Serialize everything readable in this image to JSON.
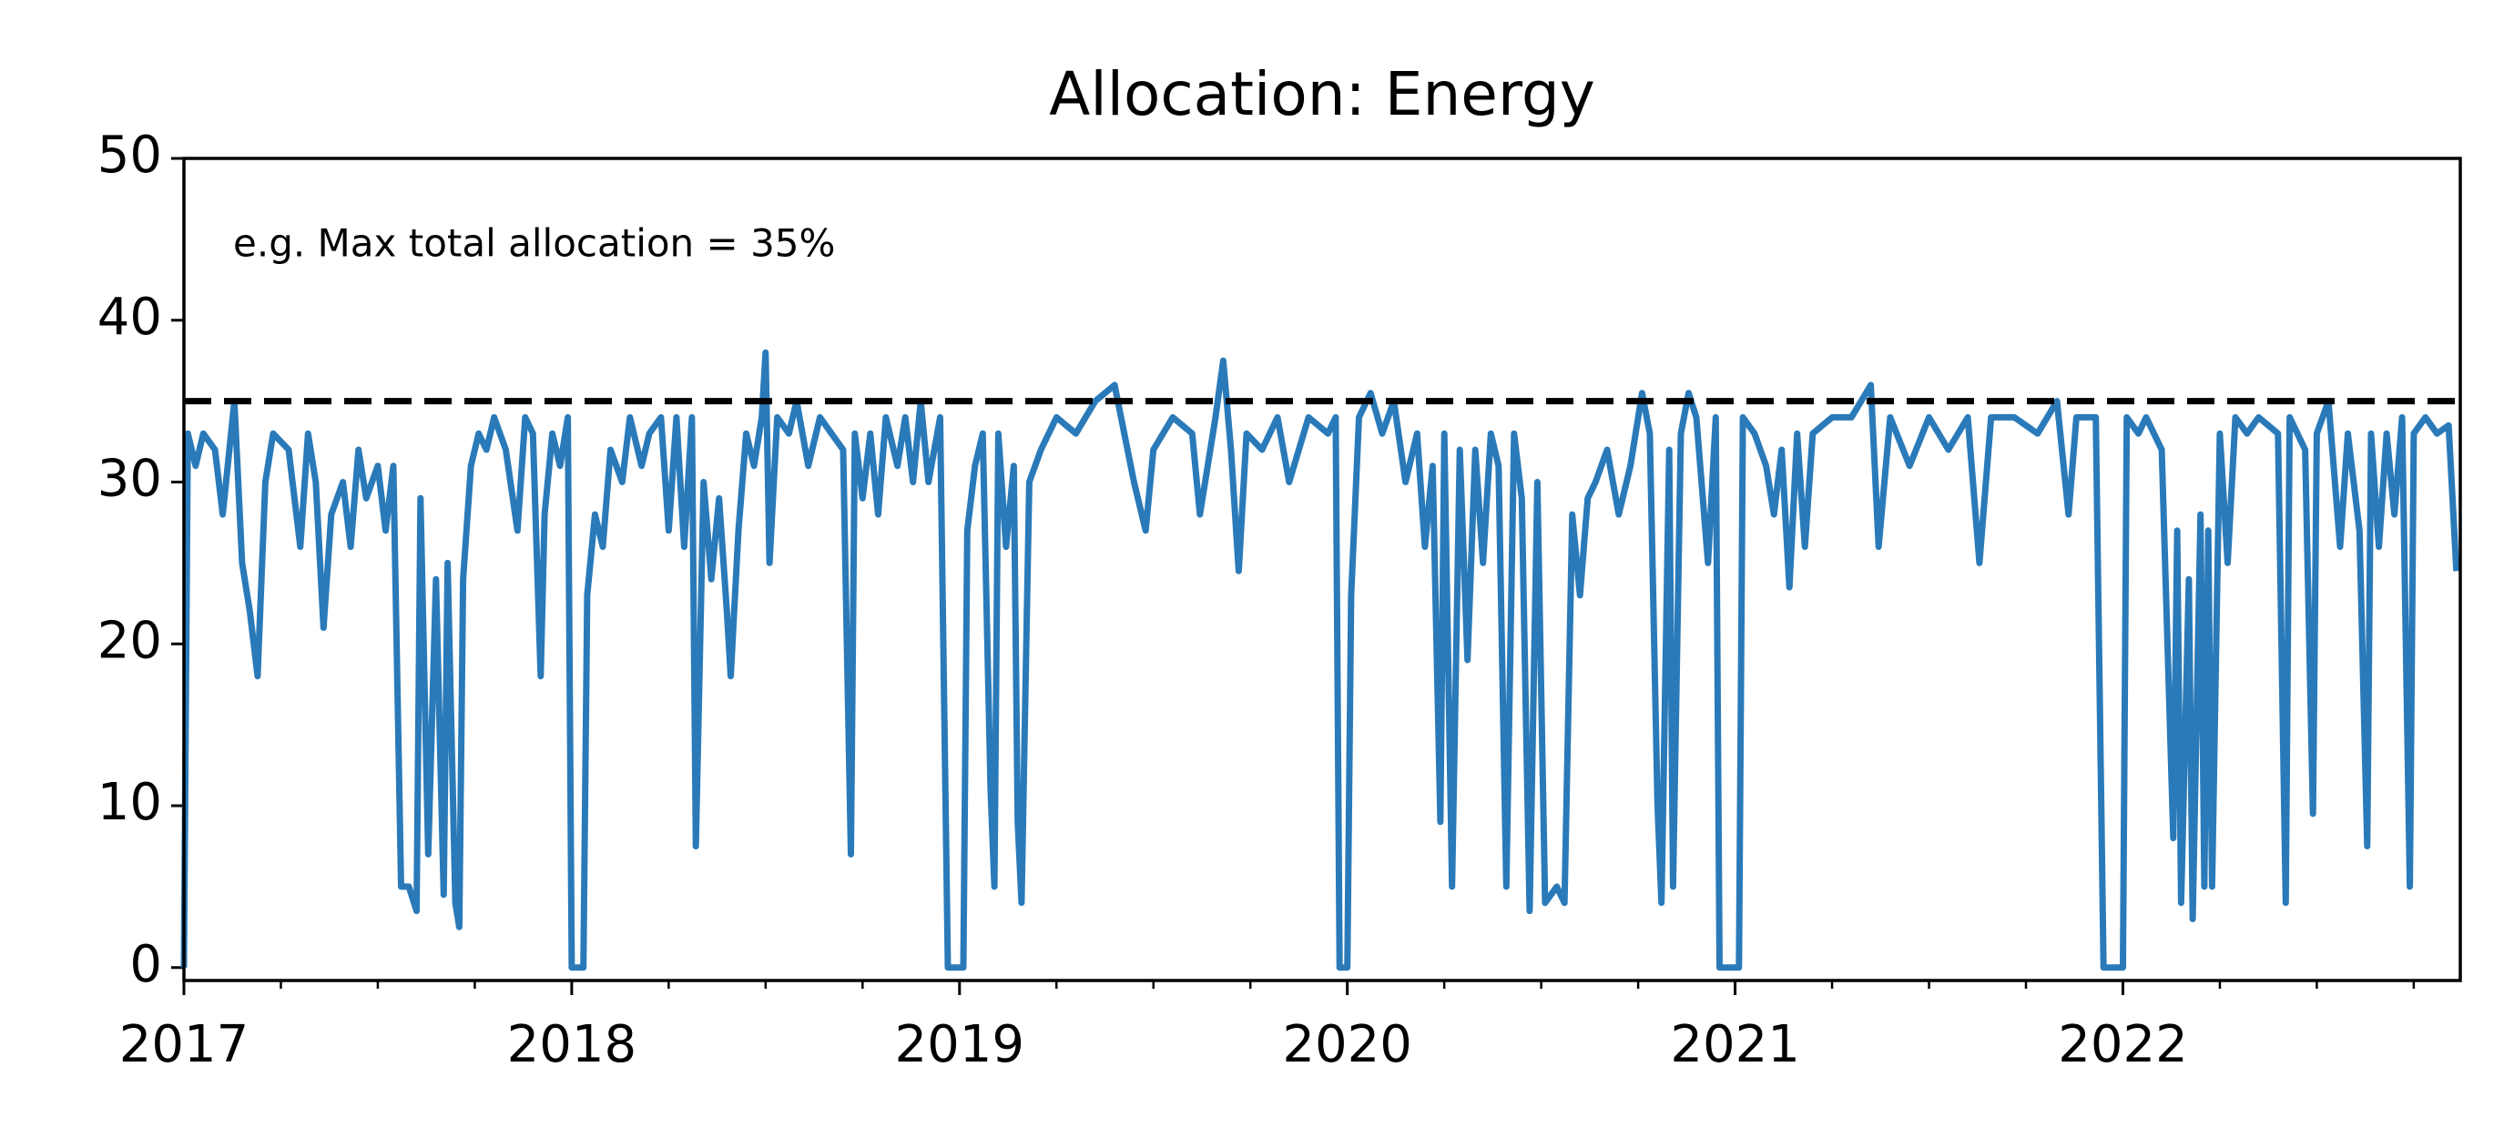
{
  "chart_data": {
    "type": "line",
    "title": "Allocation: Energy",
    "annotation": "e.g. Max total allocation = 35%",
    "hline": 35,
    "hline_color": "#000000",
    "color": "#2a7ab9",
    "xlim": [
      2017,
      2022.87
    ],
    "ylim": [
      -0.8,
      50
    ],
    "xticks": [
      2017,
      2018,
      2019,
      2020,
      2021,
      2022
    ],
    "xminorticks": [
      2017.25,
      2017.5,
      2017.75,
      2018.25,
      2018.5,
      2018.75,
      2019.25,
      2019.5,
      2019.75,
      2020.25,
      2020.5,
      2020.75,
      2021.25,
      2021.5,
      2021.75,
      2022.25,
      2022.5,
      2022.75
    ],
    "yticks": [
      0,
      10,
      20,
      30,
      40,
      50
    ],
    "x": [
      2017.0,
      2017.01,
      2017.03,
      2017.05,
      2017.08,
      2017.1,
      2017.13,
      2017.15,
      2017.17,
      2017.19,
      2017.21,
      2017.23,
      2017.27,
      2017.3,
      2017.32,
      2017.34,
      2017.36,
      2017.38,
      2017.41,
      2017.43,
      2017.45,
      2017.47,
      2017.5,
      2017.52,
      2017.54,
      2017.56,
      2017.58,
      2017.6,
      2017.61,
      2017.63,
      2017.65,
      2017.67,
      2017.68,
      2017.7,
      2017.71,
      2017.72,
      2017.74,
      2017.76,
      2017.78,
      2017.8,
      2017.83,
      2017.86,
      2017.88,
      2017.9,
      2017.92,
      2017.93,
      2017.95,
      2017.97,
      2017.99,
      2018.0,
      2018.03,
      2018.04,
      2018.06,
      2018.08,
      2018.1,
      2018.13,
      2018.15,
      2018.18,
      2018.2,
      2018.23,
      2018.25,
      2018.27,
      2018.29,
      2018.31,
      2018.32,
      2018.34,
      2018.36,
      2018.38,
      2018.4,
      2018.41,
      2018.43,
      2018.45,
      2018.47,
      2018.49,
      2018.5,
      2018.51,
      2018.53,
      2018.56,
      2018.58,
      2018.61,
      2018.64,
      2018.67,
      2018.7,
      2018.72,
      2018.73,
      2018.75,
      2018.77,
      2018.79,
      2018.81,
      2018.84,
      2018.86,
      2018.88,
      2018.9,
      2018.92,
      2018.95,
      2018.97,
      2019.01,
      2019.02,
      2019.04,
      2019.06,
      2019.08,
      2019.09,
      2019.1,
      2019.12,
      2019.14,
      2019.15,
      2019.16,
      2019.18,
      2019.21,
      2019.25,
      2019.3,
      2019.35,
      2019.4,
      2019.45,
      2019.48,
      2019.5,
      2019.55,
      2019.6,
      2019.62,
      2019.66,
      2019.68,
      2019.7,
      2019.72,
      2019.74,
      2019.78,
      2019.82,
      2019.85,
      2019.9,
      2019.95,
      2019.97,
      2019.98,
      2020.0,
      2020.01,
      2020.03,
      2020.06,
      2020.09,
      2020.12,
      2020.15,
      2020.18,
      2020.2,
      2020.22,
      2020.24,
      2020.25,
      2020.27,
      2020.29,
      2020.31,
      2020.33,
      2020.35,
      2020.37,
      2020.39,
      2020.41,
      2020.43,
      2020.45,
      2020.47,
      2020.49,
      2020.51,
      2020.54,
      2020.56,
      2020.58,
      2020.6,
      2020.62,
      2020.64,
      2020.67,
      2020.7,
      2020.73,
      2020.76,
      2020.78,
      2020.8,
      2020.81,
      2020.83,
      2020.84,
      2020.86,
      2020.88,
      2020.9,
      2020.93,
      2020.95,
      2020.96,
      2021.01,
      2021.02,
      2021.05,
      2021.08,
      2021.1,
      2021.12,
      2021.14,
      2021.16,
      2021.18,
      2021.2,
      2021.25,
      2021.3,
      2021.35,
      2021.37,
      2021.4,
      2021.45,
      2021.5,
      2021.55,
      2021.6,
      2021.63,
      2021.66,
      2021.72,
      2021.78,
      2021.83,
      2021.86,
      2021.88,
      2021.93,
      2021.95,
      2022.0,
      2022.01,
      2022.04,
      2022.06,
      2022.1,
      2022.13,
      2022.14,
      2022.15,
      2022.17,
      2022.18,
      2022.2,
      2022.21,
      2022.22,
      2022.23,
      2022.25,
      2022.27,
      2022.29,
      2022.32,
      2022.35,
      2022.4,
      2022.42,
      2022.43,
      2022.47,
      2022.49,
      2022.5,
      2022.53,
      2022.56,
      2022.58,
      2022.61,
      2022.63,
      2022.64,
      2022.66,
      2022.68,
      2022.7,
      2022.72,
      2022.74,
      2022.75,
      2022.78,
      2022.81,
      2022.84,
      2022.86
    ],
    "values": [
      0,
      33,
      31,
      33,
      32,
      28,
      35,
      25,
      22,
      18,
      30,
      33,
      32,
      26,
      33,
      30,
      21,
      28,
      30,
      26,
      32,
      29,
      31,
      27,
      31,
      5,
      5,
      3.5,
      29,
      7,
      24,
      4.5,
      25,
      4,
      2.5,
      24,
      31,
      33,
      32,
      34,
      32,
      27,
      34,
      33,
      18,
      28,
      33,
      31,
      34,
      0,
      0,
      23,
      28,
      26,
      32,
      30,
      34,
      31,
      33,
      34,
      27,
      34,
      26,
      34,
      7.5,
      30,
      24,
      29,
      22,
      18,
      27,
      33,
      31,
      34,
      38,
      25,
      34,
      33,
      35,
      31,
      34,
      33,
      32,
      7,
      33,
      29,
      33,
      28,
      34,
      31,
      34,
      30,
      35,
      30,
      34,
      0,
      0,
      27,
      31,
      33,
      11,
      5,
      33,
      26,
      31,
      9,
      4,
      30,
      32,
      34,
      33,
      35,
      36,
      30,
      27,
      32,
      34,
      33,
      28,
      34,
      37.5,
      32,
      24.5,
      33,
      32,
      34,
      30,
      34,
      33,
      34,
      0,
      0,
      23,
      34,
      35.5,
      33,
      35,
      30,
      33,
      26,
      31,
      9,
      33,
      5,
      32,
      19,
      32,
      25,
      33,
      31,
      5,
      33,
      29,
      3.5,
      30,
      4,
      5,
      4,
      28,
      23,
      29,
      30,
      32,
      28,
      31,
      35.5,
      33,
      10,
      4,
      32,
      5,
      33,
      35.5,
      34,
      25,
      34,
      0,
      0,
      34,
      33,
      31,
      28,
      32,
      23.5,
      33,
      26,
      33,
      34,
      34,
      36,
      26,
      34,
      31,
      34,
      32,
      34,
      25,
      34,
      34,
      33,
      35,
      28,
      34,
      34,
      0,
      0,
      34,
      33,
      34,
      32,
      8,
      27,
      4,
      24,
      3,
      28,
      5,
      27,
      5,
      33,
      25,
      34,
      33,
      34,
      33,
      4,
      34,
      32,
      9.5,
      33,
      35,
      26,
      33,
      27,
      7.5,
      33,
      26,
      33,
      28,
      34,
      5,
      33,
      34,
      33,
      33.5,
      24.5
    ]
  }
}
